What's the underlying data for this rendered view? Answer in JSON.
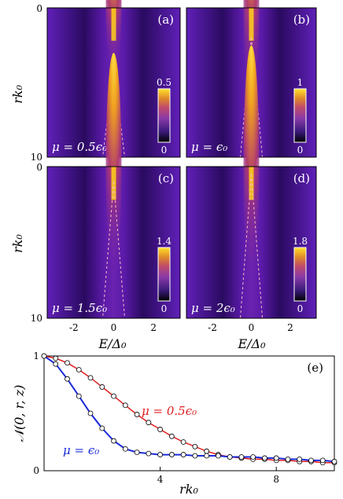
{
  "colors": {
    "background_purple": "#5a1aa8",
    "peak_yellow": "#ffd21a",
    "red_series": "#e02020",
    "blue_series": "#1a2ad8"
  },
  "heatmaps": {
    "ylabel": "rk₀",
    "xlabel": "E/Δ₀",
    "y_ticks": [
      "0",
      "10"
    ],
    "x_ticks": [
      "-2",
      "0",
      "2"
    ],
    "panels": [
      {
        "letter": "(a)",
        "mu": "μ = 0.5ϵ₀",
        "cb_max": "0.5",
        "cb_min": "0",
        "peak_r": 4.0
      },
      {
        "letter": "(b)",
        "mu": "μ = ϵ₀",
        "cb_max": "1",
        "cb_min": "0",
        "peak_r": 2.0
      },
      {
        "letter": "(c)",
        "mu": "μ = 1.5ϵ₀",
        "cb_max": "1.4",
        "cb_min": "0",
        "peak_r": 1.0
      },
      {
        "letter": "(d)",
        "mu": "μ = 2ϵ₀",
        "cb_max": "1.8",
        "cb_min": "0",
        "peak_r": 0.5
      }
    ]
  },
  "chart_data": {
    "type": "line",
    "panel": "(e)",
    "xlabel": "rk₀",
    "ylabel": "𝒩(0, r, z)",
    "xlim": [
      0,
      10
    ],
    "ylim": [
      0,
      1
    ],
    "x_ticks": [
      "4",
      "8"
    ],
    "y_ticks": [
      "0",
      "1"
    ],
    "series": [
      {
        "name": "μ = 0.5ϵ₀",
        "color": "red",
        "x": [
          0,
          0.4,
          0.8,
          1.2,
          1.6,
          2.0,
          2.4,
          2.8,
          3.2,
          3.6,
          4.0,
          4.4,
          4.8,
          5.2,
          5.6,
          6.0,
          6.4,
          6.8,
          7.2,
          7.6,
          8.0,
          8.4,
          8.8,
          9.2,
          9.6,
          10.0
        ],
        "y": [
          1.0,
          0.98,
          0.94,
          0.88,
          0.81,
          0.73,
          0.65,
          0.57,
          0.49,
          0.42,
          0.36,
          0.3,
          0.25,
          0.21,
          0.17,
          0.14,
          0.12,
          0.11,
          0.1,
          0.1,
          0.09,
          0.09,
          0.08,
          0.08,
          0.07,
          0.07
        ]
      },
      {
        "name": "μ = ϵ₀",
        "color": "blue",
        "x": [
          0,
          0.4,
          0.8,
          1.2,
          1.6,
          2.0,
          2.4,
          2.8,
          3.2,
          3.6,
          4.0,
          4.4,
          4.8,
          5.2,
          5.6,
          6.0,
          6.4,
          6.8,
          7.2,
          7.6,
          8.0,
          8.4,
          8.8,
          9.2,
          9.6,
          10.0
        ],
        "y": [
          1.0,
          0.93,
          0.8,
          0.65,
          0.5,
          0.37,
          0.26,
          0.19,
          0.16,
          0.15,
          0.14,
          0.14,
          0.14,
          0.13,
          0.13,
          0.13,
          0.12,
          0.12,
          0.12,
          0.11,
          0.11,
          0.1,
          0.1,
          0.09,
          0.09,
          0.08
        ]
      }
    ]
  }
}
